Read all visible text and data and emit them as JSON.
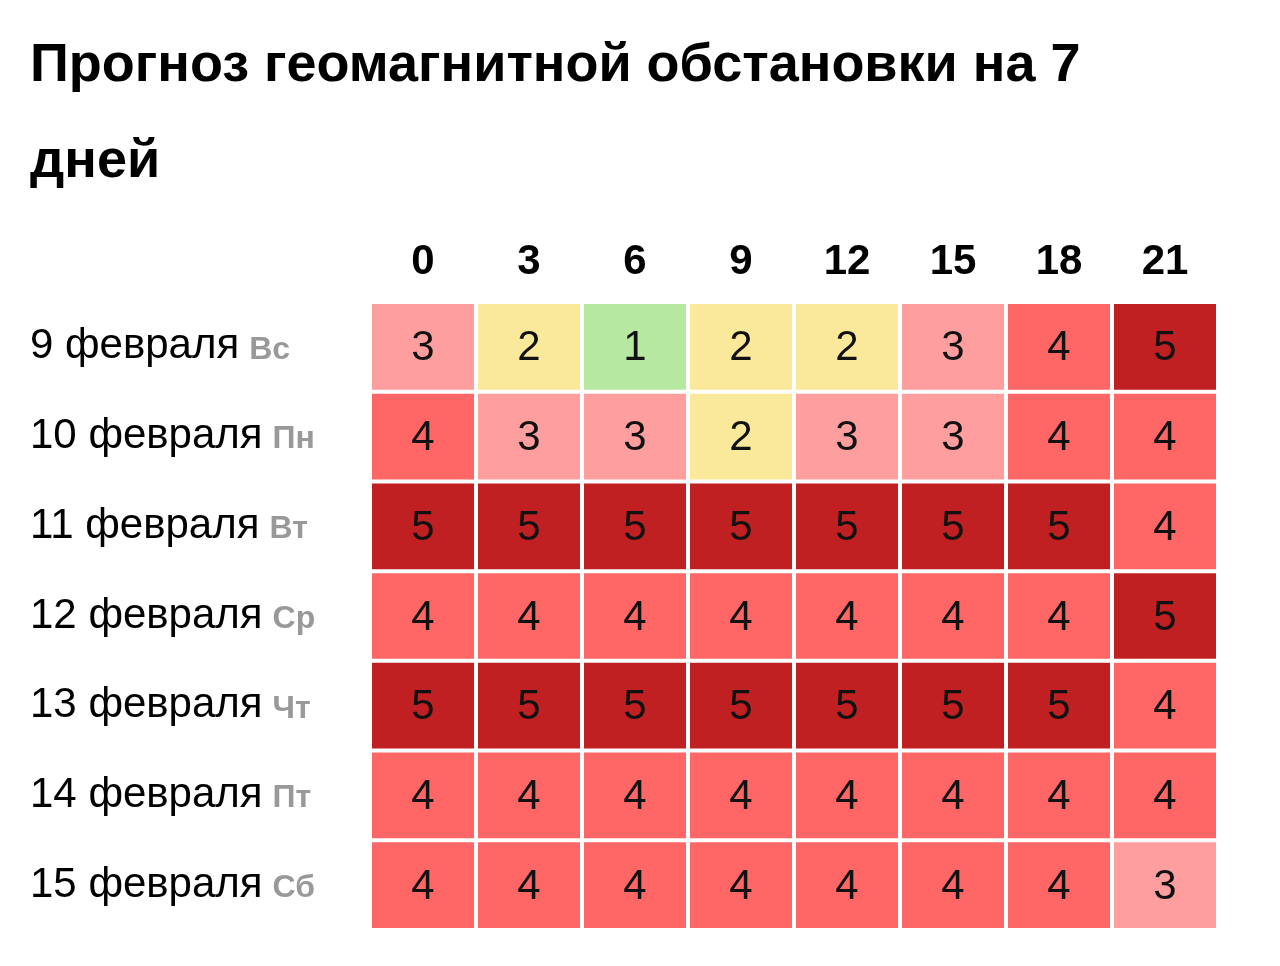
{
  "chart_data": {
    "type": "heatmap",
    "title": "Прогноз геомагнитной обстановки на 7 дней",
    "categories": [
      "0",
      "3",
      "6",
      "9",
      "12",
      "15",
      "18",
      "21"
    ],
    "y_categories": [
      "9 февраля",
      "10 февраля",
      "11 февраля",
      "12 февраля",
      "13 февраля",
      "14 февраля",
      "15 февраля"
    ],
    "y2_categories": [
      "Вс",
      "Пн",
      "Вт",
      "Ср",
      "Чт",
      "Пт",
      "Сб"
    ],
    "cells": [
      [
        3,
        2,
        1,
        2,
        2,
        3,
        4,
        5
      ],
      [
        4,
        3,
        3,
        2,
        3,
        3,
        4,
        4
      ],
      [
        5,
        5,
        5,
        5,
        5,
        5,
        5,
        4
      ],
      [
        4,
        4,
        4,
        4,
        4,
        4,
        4,
        5
      ],
      [
        5,
        5,
        5,
        5,
        5,
        5,
        5,
        4
      ],
      [
        4,
        4,
        4,
        4,
        4,
        4,
        4,
        4
      ],
      [
        4,
        4,
        4,
        4,
        4,
        4,
        4,
        3
      ]
    ],
    "colors": [
      [
        "#ff9e9e",
        "#fbe99b",
        "#b7e8a2",
        "#fbe99b",
        "#fbe99b",
        "#ff9e9e",
        "#ff6666",
        "#c02022"
      ],
      [
        "#ff6666",
        "#ff9e9e",
        "#ff9e9e",
        "#fbe99b",
        "#ff9e9e",
        "#ff9e9e",
        "#ff6666",
        "#ff6666"
      ],
      [
        "#c02022",
        "#c02022",
        "#c02022",
        "#c02022",
        "#c02022",
        "#c02022",
        "#c02022",
        "#ff6666"
      ],
      [
        "#ff6666",
        "#ff6666",
        "#ff6666",
        "#ff6666",
        "#ff6666",
        "#ff6666",
        "#ff6666",
        "#c02022"
      ],
      [
        "#c02022",
        "#c02022",
        "#c02022",
        "#c02022",
        "#c02022",
        "#c02022",
        "#c02022",
        "#ff6666"
      ],
      [
        "#ff6666",
        "#ff6666",
        "#ff6666",
        "#ff6666",
        "#ff6666",
        "#ff6666",
        "#ff6666",
        "#ff6666"
      ],
      [
        "#ff6666",
        "#ff6666",
        "#ff6666",
        "#ff6666",
        "#ff6666",
        "#ff6666",
        "#ff6666",
        "#ff9e9e"
      ]
    ],
    "data_labels": true
  }
}
